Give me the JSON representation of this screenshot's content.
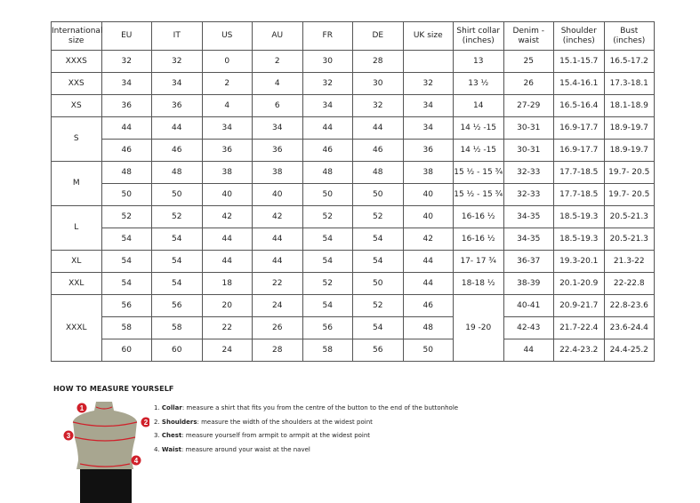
{
  "table": {
    "headers": [
      "International size",
      "EU",
      "IT",
      "US",
      "AU",
      "FR",
      "DE",
      "UK size",
      "Shirt collar (inches)",
      "Denim - waist",
      "Shoulder (inches)",
      "Bust (inches)"
    ],
    "rows": [
      {
        "size": "XXXS",
        "EU": "32",
        "IT": "32",
        "US": "0",
        "AU": "2",
        "FR": "30",
        "DE": "28",
        "UK": "",
        "collar": "13",
        "denim": "25",
        "shoulder": "15.1-15.7",
        "bust": "16.5-17.2"
      },
      {
        "size": "XXS",
        "EU": "34",
        "IT": "34",
        "US": "2",
        "AU": "4",
        "FR": "32",
        "DE": "30",
        "UK": "32",
        "collar": "13 ½",
        "denim": "26",
        "shoulder": "15.4-16.1",
        "bust": "17.3-18.1"
      },
      {
        "size": "XS",
        "EU": "36",
        "IT": "36",
        "US": "4",
        "AU": "6",
        "FR": "34",
        "DE": "32",
        "UK": "34",
        "collar": "14",
        "denim": "27-29",
        "shoulder": "16.5-16.4",
        "bust": "18.1-18.9"
      },
      {
        "size": "S",
        "EU": "44",
        "IT": "44",
        "US": "34",
        "AU": "34",
        "FR": "44",
        "DE": "44",
        "UK": "34",
        "collar": "14 ½ -15",
        "denim": "30-31",
        "shoulder": "16.9-17.7",
        "bust": "18.9-19.7"
      },
      {
        "EU": "46",
        "IT": "46",
        "US": "36",
        "AU": "36",
        "FR": "46",
        "DE": "46",
        "UK": "36",
        "collar": "14 ½ -15",
        "denim": "30-31",
        "shoulder": "16.9-17.7",
        "bust": "18.9-19.7"
      },
      {
        "size": "M",
        "EU": "48",
        "IT": "48",
        "US": "38",
        "AU": "38",
        "FR": "48",
        "DE": "48",
        "UK": "38",
        "collar": "15 ½ - 15 ¾",
        "denim": "32-33",
        "shoulder": "17.7-18.5",
        "bust": "19.7- 20.5"
      },
      {
        "EU": "50",
        "IT": "50",
        "US": "40",
        "AU": "40",
        "FR": "50",
        "DE": "50",
        "UK": "40",
        "collar": "15 ½ - 15 ¾",
        "denim": "32-33",
        "shoulder": "17.7-18.5",
        "bust": "19.7- 20.5"
      },
      {
        "size": "L",
        "EU": "52",
        "IT": "52",
        "US": "42",
        "AU": "42",
        "FR": "52",
        "DE": "52",
        "UK": "40",
        "collar": "16-16 ½",
        "denim": "34-35",
        "shoulder": "18.5-19.3",
        "bust": "20.5-21.3"
      },
      {
        "EU": "54",
        "IT": "54",
        "US": "44",
        "AU": "44",
        "FR": "54",
        "DE": "54",
        "UK": "42",
        "collar": "16-16 ½",
        "denim": "34-35",
        "shoulder": "18.5-19.3",
        "bust": "20.5-21.3"
      },
      {
        "size": "XL",
        "EU": "54",
        "IT": "54",
        "US": "44",
        "AU": "44",
        "FR": "54",
        "DE": "54",
        "UK": "44",
        "collar": "17- 17 ¾",
        "denim": "36-37",
        "shoulder": "19.3-20.1",
        "bust": "21.3-22"
      },
      {
        "size": "XXL",
        "EU": "54",
        "IT": "54",
        "US": "18",
        "AU": "22",
        "FR": "52",
        "DE": "50",
        "UK": "44",
        "collar": "18-18 ½",
        "denim": "38-39",
        "shoulder": "20.1-20.9",
        "bust": "22-22.8"
      },
      {
        "size": "XXXL",
        "EU": "56",
        "IT": "56",
        "US": "20",
        "AU": "24",
        "FR": "54",
        "DE": "52",
        "UK": "46",
        "collar": "19 -20",
        "denim": "40-41",
        "shoulder": "20.9-21.7",
        "bust": "22.8-23.6"
      },
      {
        "EU": "58",
        "IT": "58",
        "US": "22",
        "AU": "26",
        "FR": "56",
        "DE": "54",
        "UK": "48",
        "denim": "42-43",
        "shoulder": "21.7-22.4",
        "bust": "23.6-24.4"
      },
      {
        "EU": "60",
        "IT": "60",
        "US": "24",
        "AU": "28",
        "FR": "58",
        "DE": "56",
        "UK": "50",
        "denim": "44",
        "shoulder": "22.4-23.2",
        "bust": "24.4-25.2"
      }
    ]
  },
  "guide": {
    "title": "HOW TO MEASURE YOURSELF",
    "markers": [
      "1",
      "2",
      "3",
      "4"
    ],
    "steps": [
      {
        "num": "1.",
        "term": "Collar",
        "text": ": measure a shirt that fits you from the centre of the button to the end of the buttonhole"
      },
      {
        "num": "2.",
        "term": "Shoulders",
        "text": ": measure the width of the shoulders at the widest point"
      },
      {
        "num": "3.",
        "term": "Chest",
        "text": ": measure yourself from armpit to armpit at the widest point"
      },
      {
        "num": "4.",
        "term": "Waist",
        "text": ": measure around your waist at the navel"
      }
    ]
  },
  "colors": {
    "marker": "#d0202a",
    "torso": "#a8a690",
    "shorts": "#111111"
  }
}
